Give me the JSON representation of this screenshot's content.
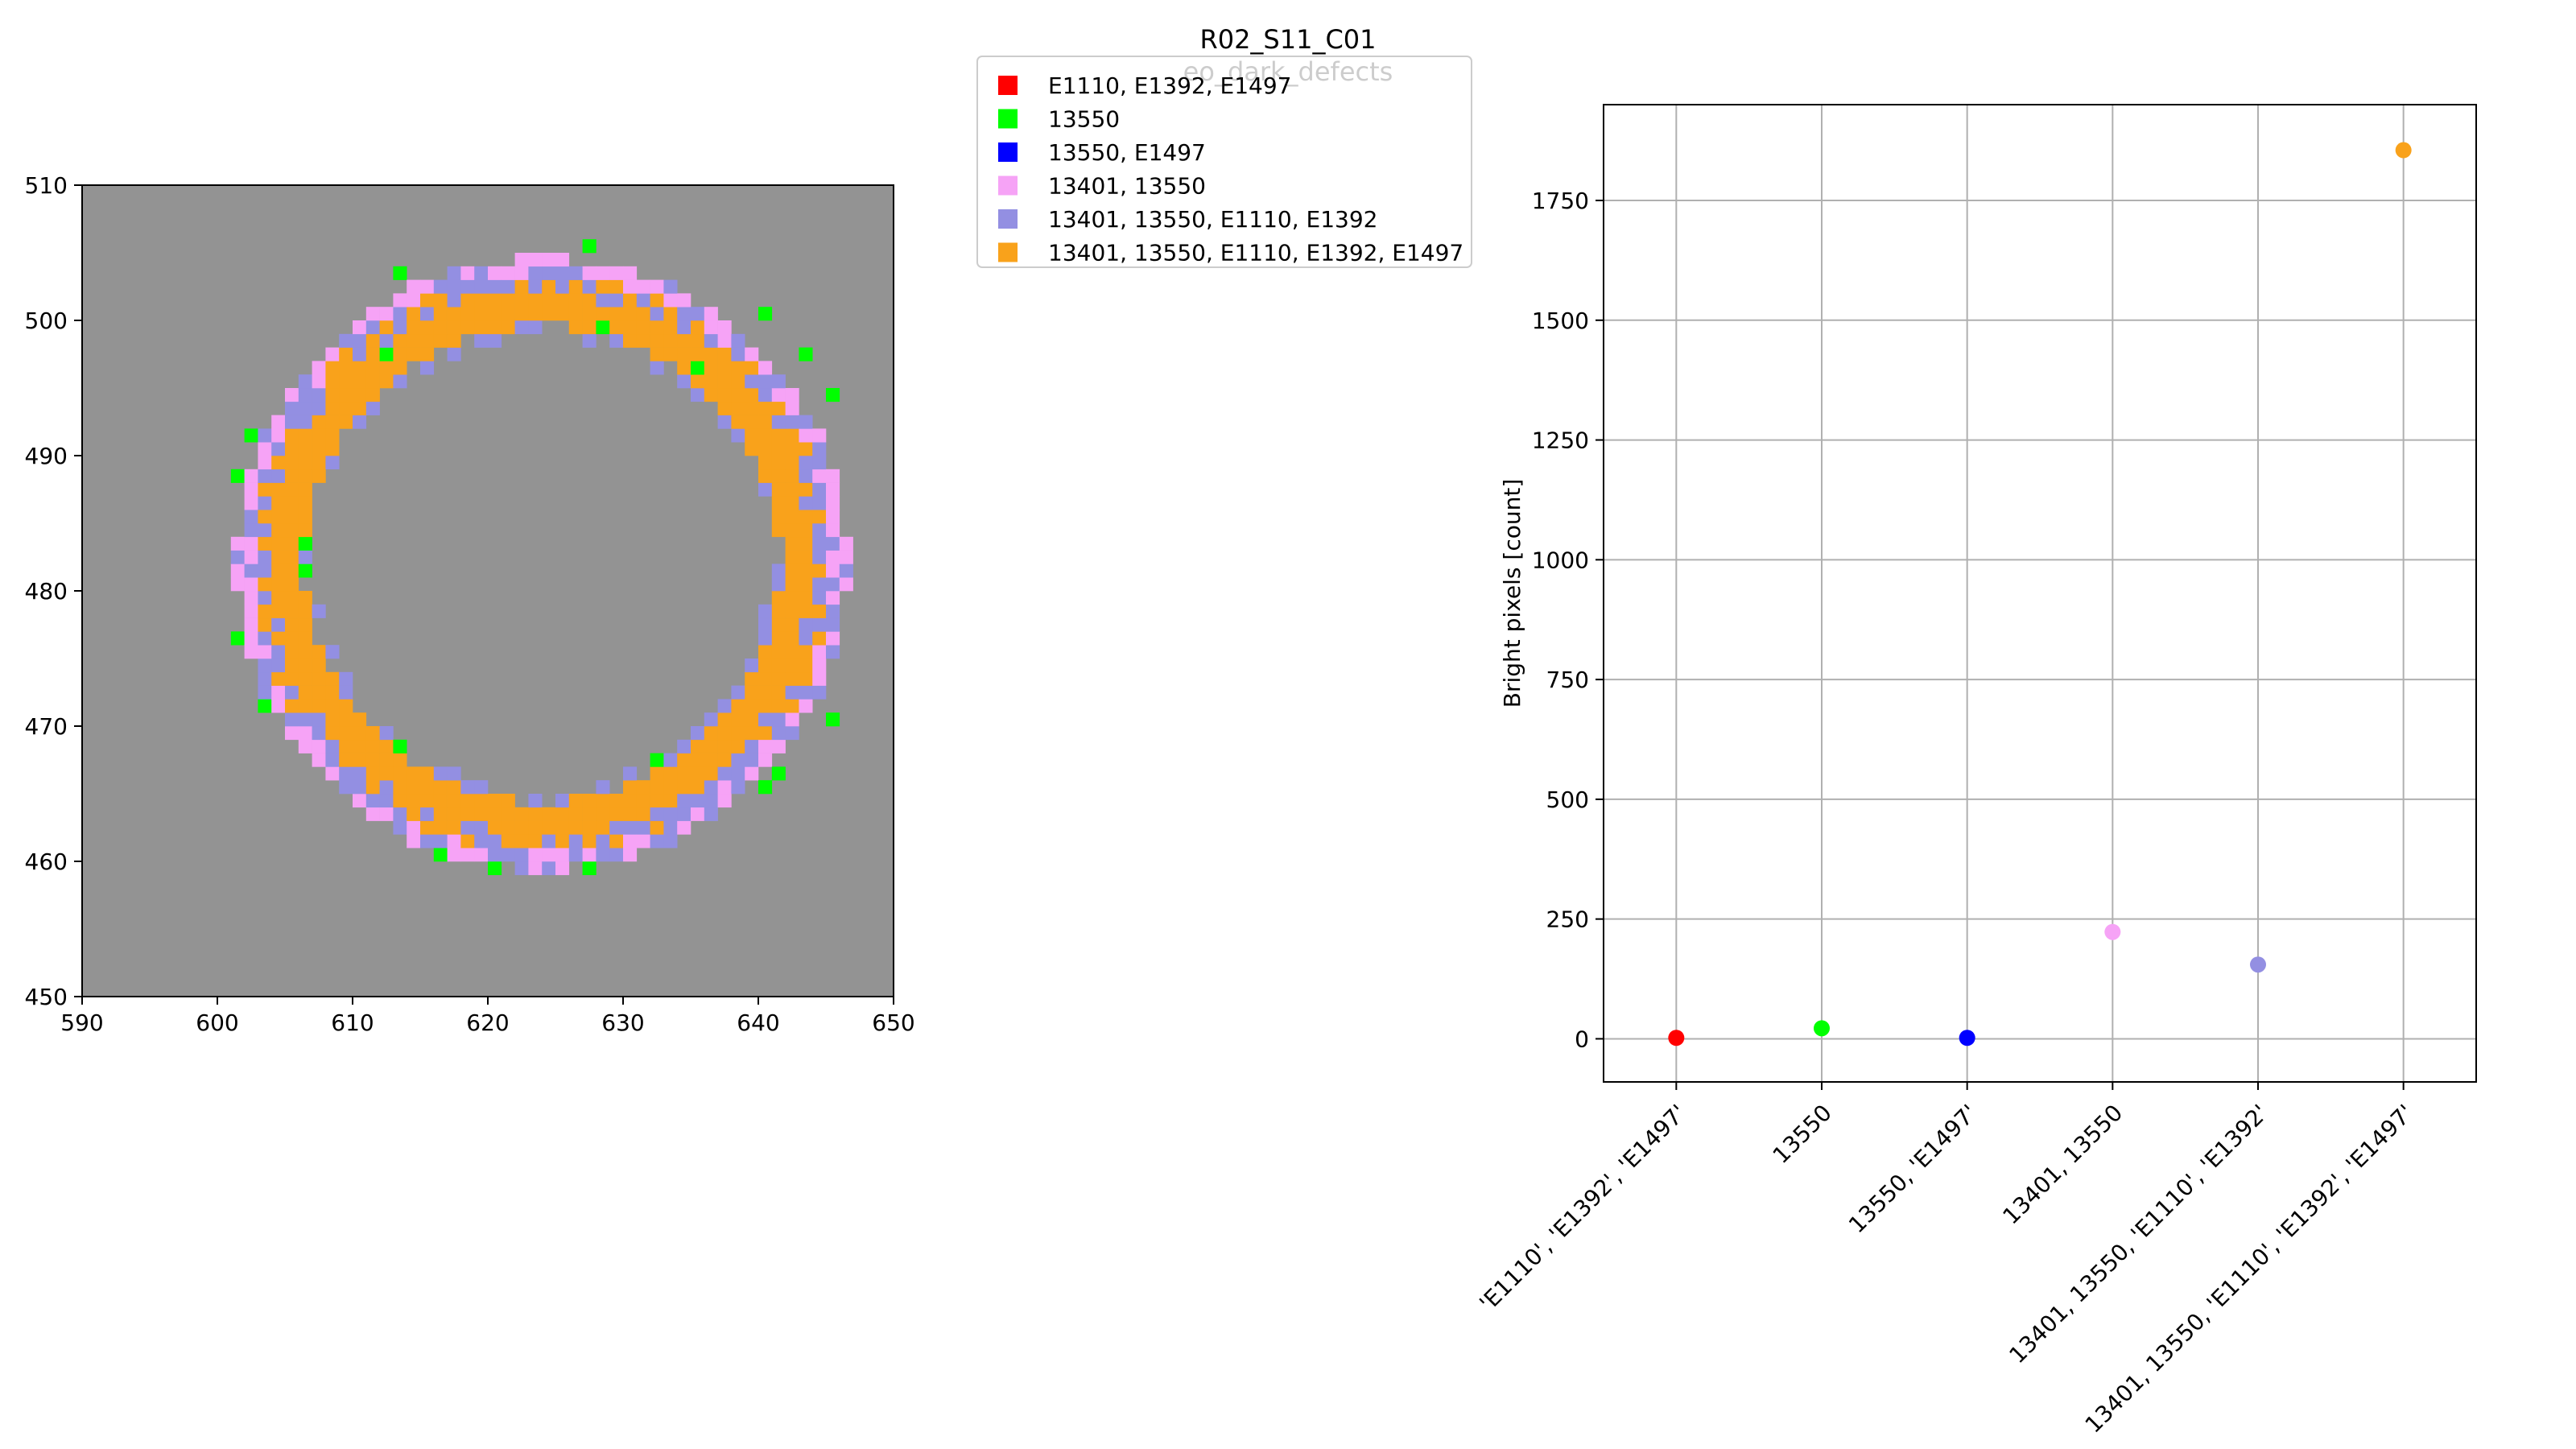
{
  "figure": {
    "title_line1": "R02_S11_C01",
    "title_line2": "eo_dark_defects"
  },
  "colors": {
    "background": "#939393",
    "E1110, E1392, E1497": "#ff0000",
    "13550": "#00ff00",
    "13550, E1497": "#0000ff",
    "13401, 13550": "#f6a3f6",
    "13401, 13550, E1110, E1392": "#938fe2",
    "13401, 13550, E1110, E1392, E1497": "#f9a21b"
  },
  "legend": {
    "entries": [
      {
        "label": "E1110, E1392, E1497",
        "color": "#ff0000"
      },
      {
        "label": "13550",
        "color": "#00ff00"
      },
      {
        "label": "13550, E1497",
        "color": "#0000ff"
      },
      {
        "label": "13401, 13550",
        "color": "#f6a3f6"
      },
      {
        "label": "13401, 13550, E1110, E1392",
        "color": "#938fe2"
      },
      {
        "label": "13401, 13550, E1110, E1392, E1497",
        "color": "#f9a21b"
      }
    ]
  },
  "chart_data": [
    {
      "type": "heatmap",
      "description_of_content": "pixel defect map",
      "xlim": [
        590,
        650
      ],
      "ylim": [
        450,
        510
      ],
      "xticks": [
        "590",
        "600",
        "610",
        "620",
        "630",
        "640",
        "650"
      ],
      "yticks": [
        "450",
        "460",
        "470",
        "480",
        "490",
        "500",
        "510"
      ],
      "background_color": "#939393",
      "ring": {
        "center_x": 624,
        "center_y": 482,
        "outer_pink_radius": 22.5,
        "purple_radius": 21.0,
        "orange_inner_radius": 17.5,
        "orange_outer_radius": 20.0,
        "inner_purple_radius": 17.2
      },
      "green_pixels": [
        [
          613,
          503
        ],
        [
          627,
          505
        ],
        [
          628,
          499
        ],
        [
          640,
          500
        ],
        [
          643,
          497
        ],
        [
          645,
          494
        ],
        [
          612,
          497
        ],
        [
          635,
          496
        ],
        [
          602,
          491
        ],
        [
          601,
          488
        ],
        [
          606,
          483
        ],
        [
          606,
          481
        ],
        [
          601,
          476
        ],
        [
          603,
          471
        ],
        [
          613,
          468
        ],
        [
          616,
          460
        ],
        [
          620,
          459
        ],
        [
          627,
          459
        ],
        [
          632,
          467
        ],
        [
          640,
          465
        ],
        [
          641,
          466
        ],
        [
          645,
          470
        ]
      ]
    },
    {
      "type": "scatter",
      "categories": [
        "'E1110', 'E1392', 'E1497'",
        "13550",
        "13550, 'E1497'",
        "13401, 13550",
        "13401, 13550, 'E1110', 'E1392'",
        "13401, 13550, 'E1110', 'E1392', 'E1497'"
      ],
      "values": [
        2,
        22,
        2,
        223,
        155,
        1855
      ],
      "point_colors": [
        "#ff0000",
        "#00ff00",
        "#0000ff",
        "#f6a3f6",
        "#938fe2",
        "#f9a21b"
      ],
      "ylabel": "Bright pixels [count]",
      "ylim": [
        -90,
        1950
      ],
      "yticks": [
        0,
        250,
        500,
        750,
        1000,
        1250,
        1500,
        1750
      ],
      "grid": true
    }
  ]
}
